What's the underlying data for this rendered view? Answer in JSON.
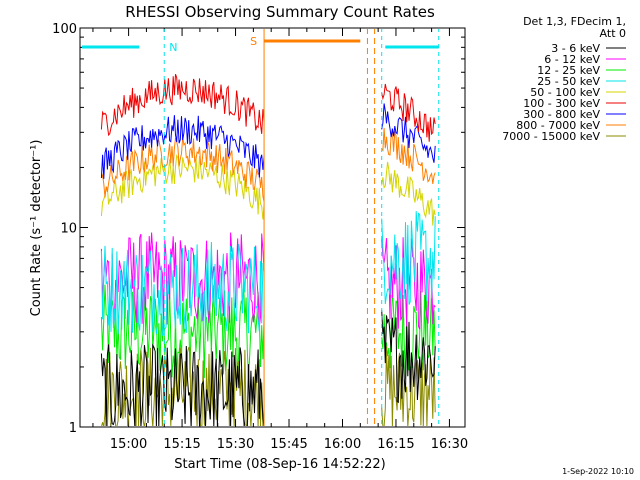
{
  "chart_data": {
    "type": "line",
    "title": "RHESSI Observing Summary Count Rates",
    "xlabel": "Start Time (08-Sep-16 14:52:22)",
    "ylabel": "Count Rate (s⁻¹ detector⁻¹)",
    "y_scale": "log",
    "ylim": [
      1,
      100
    ],
    "xlim_minutes_after_start": [
      -6,
      102
    ],
    "x_tick_labels": [
      "15:00",
      "15:15",
      "15:30",
      "15:45",
      "16:00",
      "16:15",
      "16:30"
    ],
    "y_tick_labels": [
      "1",
      "10",
      "100"
    ],
    "detector_info": {
      "line1": "Det 1,3, FDecim 1,",
      "line2": "Att 0"
    },
    "flags": [
      {
        "label": "N",
        "color": "#00e5ee"
      },
      {
        "label": "S",
        "color": "#ff7f00"
      }
    ],
    "x_segments_time": [
      [
        "14:52:22",
        "15:38"
      ],
      [
        "16:11",
        "16:26"
      ]
    ],
    "series": [
      {
        "name": "3 - 6 keV",
        "color": "#000000",
        "levels": [
          1.5,
          2.3
        ]
      },
      {
        "name": "6 - 12 keV",
        "color": "#ff00ff",
        "levels": [
          5.5,
          5.2
        ]
      },
      {
        "name": "12 - 25 keV",
        "color": "#00ee00",
        "levels": [
          3.0,
          3.0
        ]
      },
      {
        "name": "25 - 50 keV",
        "color": "#00e5ee",
        "levels": [
          5.0,
          7.0
        ]
      },
      {
        "name": "50 - 100 keV",
        "color": "#d4d400",
        "levels": [
          18,
          13
        ]
      },
      {
        "name": "100 - 300 keV",
        "color": "#ee0000",
        "levels": [
          45,
          33
        ]
      },
      {
        "name": "300 - 800 keV",
        "color": "#0000ff",
        "levels": [
          28,
          25
        ]
      },
      {
        "name": "800 - 7000 keV",
        "color": "#ff7f00",
        "levels": [
          22,
          20
        ]
      },
      {
        "name": "7000 - 15000 keV",
        "color": "#8b8b00",
        "levels": [
          1.5,
          1.5
        ]
      }
    ]
  },
  "timestamp": "1-Sep-2022 10:10"
}
